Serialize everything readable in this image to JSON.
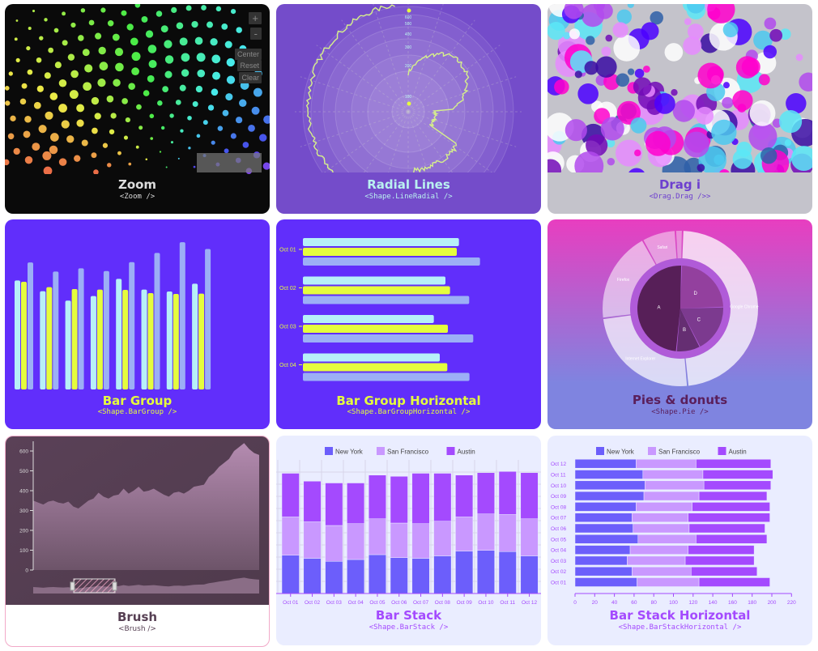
{
  "tiles": {
    "zoom": {
      "title": "Zoom",
      "subtitle": "<Zoom />",
      "buttons": [
        "+",
        "-",
        "Center",
        "Reset",
        "Clear"
      ],
      "bg": "#0a0a0a"
    },
    "radial": {
      "title": "Radial Lines",
      "subtitle": "<Shape.LineRadial />",
      "ticks": [
        "600",
        "500",
        "400",
        "300",
        "200",
        "100"
      ],
      "bg": "#744cca",
      "accent": "#b9f1f0"
    },
    "drag": {
      "title": "Drag i",
      "subtitle": "<Drag.Drag />>",
      "bg": "#c4c3cb",
      "colors": [
        "#ff00cc",
        "#4b00ff",
        "#3a0ca3",
        "#2e5fa8",
        "#4cc9f0",
        "#7209b7",
        "#b14aed",
        "#e68bff",
        "#ffffff",
        "#5be7f7"
      ]
    },
    "bar_group": {
      "title": "Bar Group",
      "subtitle": "<Shape.BarGroup />",
      "bg": "#612efb",
      "colors": [
        "#b7f0f8",
        "#e5fd3d",
        "#9caff6"
      ],
      "groups": [
        [
          40.5,
          40,
          47.2
        ],
        [
          36.5,
          38,
          43.8
        ],
        [
          33,
          37.3,
          45
        ],
        [
          34.7,
          37.1,
          44
        ],
        [
          41.1,
          37,
          47.3
        ],
        [
          37.1,
          35.8,
          50.7
        ],
        [
          36.4,
          35.5,
          54.7
        ],
        [
          39.3,
          35.6,
          52.2
        ]
      ]
    },
    "bar_group_horizontal": {
      "title": "Bar Group Horizontal",
      "subtitle": "<Shape.BarGroupHorizontal />",
      "categories": [
        "Oct 01",
        "Oct 02",
        "Oct 03",
        "Oct 04"
      ],
      "groups": [
        [
          57.8,
          57,
          65.6
        ],
        [
          52.8,
          54.5,
          61.6
        ],
        [
          48.5,
          53.7,
          63.1
        ],
        [
          50.7,
          53.5,
          61.7
        ]
      ]
    },
    "pie": {
      "title": "Pies & donuts",
      "subtitle": "<Shape.Pie />",
      "browsers": [
        {
          "label": "Google Chrome",
          "value": 48
        },
        {
          "label": "Internet Explorer",
          "value": 24.5
        },
        {
          "label": "Firefox",
          "value": 19
        },
        {
          "label": "Safari",
          "value": 7
        },
        {
          "label": "",
          "value": 1.5
        }
      ],
      "letters": [
        {
          "label": "D",
          "value": 24
        },
        {
          "label": "C",
          "value": 18
        },
        {
          "label": "B",
          "value": 9
        },
        {
          "label": "A",
          "value": 49
        }
      ]
    },
    "brush": {
      "title": "Brush",
      "subtitle": "<Brush />",
      "yticks": [
        "0",
        "100",
        "200",
        "300",
        "400",
        "500",
        "600"
      ],
      "values": [
        350,
        340,
        330,
        345,
        350,
        340,
        335,
        345,
        320,
        310,
        330,
        350,
        360,
        390,
        370,
        360,
        375,
        380,
        410,
        385,
        400,
        420,
        395,
        400,
        410,
        395,
        380,
        370,
        390,
        395,
        385,
        400,
        420,
        425,
        430,
        470,
        490,
        520,
        540,
        560,
        600,
        620,
        640,
        610,
        590,
        580
      ]
    },
    "bar_stack": {
      "title": "Bar Stack",
      "subtitle": "<Shape.BarStack />"
    },
    "bar_stack_horizontal": {
      "title": "Bar Stack Horizontal",
      "subtitle": "<Shape.BarStackHorizontal />",
      "xticks": [
        "0",
        "20",
        "40",
        "60",
        "80",
        "100",
        "120",
        "140",
        "160",
        "180",
        "200",
        "220"
      ]
    }
  },
  "stack": {
    "legend": [
      "New York",
      "San Francisco",
      "Austin"
    ],
    "colors": [
      "#6c5efb",
      "#c998ff",
      "#a44afe"
    ],
    "dates": [
      "Oct 01",
      "Oct 02",
      "Oct 03",
      "Oct 04",
      "Oct 05",
      "Oct 06",
      "Oct 07",
      "Oct 08",
      "Oct 09",
      "Oct 10",
      "Oct 11",
      "Oct 12"
    ],
    "values": [
      [
        63,
        63,
        72
      ],
      [
        58,
        60,
        67
      ],
      [
        53,
        59,
        70
      ],
      [
        56,
        59,
        67
      ],
      [
        64,
        59,
        72
      ],
      [
        59,
        57,
        77
      ],
      [
        58,
        57,
        83
      ],
      [
        62,
        57,
        79
      ],
      [
        70,
        56,
        69
      ],
      [
        71,
        60,
        68
      ],
      [
        69,
        61,
        71
      ],
      [
        62,
        61,
        76
      ]
    ]
  }
}
